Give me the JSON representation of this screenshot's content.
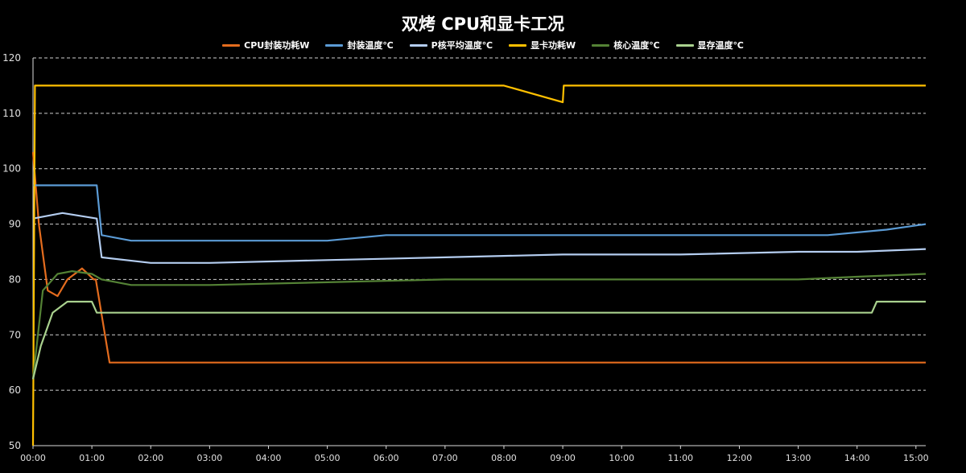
{
  "chart_data": {
    "type": "line",
    "title": "双烤 CPU和显卡工况",
    "xlabel": "",
    "ylabel": "",
    "ylim": [
      50,
      120
    ],
    "yticks": [
      50,
      60,
      70,
      80,
      90,
      100,
      110,
      120
    ],
    "xlim": [
      "00:00",
      "15:10"
    ],
    "xticks": [
      "00:00",
      "01:00",
      "02:00",
      "03:00",
      "04:00",
      "05:00",
      "06:00",
      "07:00",
      "08:00",
      "09:00",
      "10:00",
      "11:00",
      "12:00",
      "13:00",
      "14:00",
      "15:00"
    ],
    "grid": "horizontal-dashed",
    "legend_position": "top",
    "series": [
      {
        "name": "CPU封装功耗W",
        "color": "#e46c1e",
        "points": [
          [
            "00:00",
            103
          ],
          [
            "00:06",
            90
          ],
          [
            "00:15",
            78
          ],
          [
            "00:25",
            77
          ],
          [
            "00:35",
            80
          ],
          [
            "00:50",
            82
          ],
          [
            "01:02",
            80
          ],
          [
            "01:04",
            80
          ],
          [
            "01:18",
            65
          ],
          [
            "02:00",
            65
          ],
          [
            "05:00",
            65
          ],
          [
            "08:00",
            65
          ],
          [
            "11:00",
            65
          ],
          [
            "15:10",
            65
          ]
        ]
      },
      {
        "name": "封装温度℃",
        "color": "#5b9bd5",
        "points": [
          [
            "00:00",
            97
          ],
          [
            "01:05",
            97
          ],
          [
            "01:10",
            88
          ],
          [
            "01:40",
            87
          ],
          [
            "03:00",
            87
          ],
          [
            "05:00",
            87
          ],
          [
            "06:00",
            88
          ],
          [
            "07:00",
            88
          ],
          [
            "09:00",
            88
          ],
          [
            "12:00",
            88
          ],
          [
            "13:30",
            88
          ],
          [
            "14:30",
            89
          ],
          [
            "15:10",
            90
          ]
        ]
      },
      {
        "name": "P核平均温度℃",
        "color": "#b4cdf0",
        "points": [
          [
            "00:00",
            91
          ],
          [
            "00:30",
            92
          ],
          [
            "01:05",
            91
          ],
          [
            "01:10",
            84
          ],
          [
            "02:00",
            83
          ],
          [
            "03:00",
            83
          ],
          [
            "05:00",
            83.5
          ],
          [
            "07:00",
            84
          ],
          [
            "09:00",
            84.5
          ],
          [
            "11:00",
            84.5
          ],
          [
            "13:00",
            85
          ],
          [
            "14:00",
            85
          ],
          [
            "15:10",
            85.5
          ]
        ]
      },
      {
        "name": "显卡功耗W",
        "color": "#ffc000",
        "points": [
          [
            "00:00",
            50
          ],
          [
            "00:02",
            115
          ],
          [
            "02:00",
            115
          ],
          [
            "05:00",
            115
          ],
          [
            "08:00",
            115
          ],
          [
            "09:00",
            112
          ],
          [
            "09:01",
            115
          ],
          [
            "12:00",
            115
          ],
          [
            "15:10",
            115
          ]
        ]
      },
      {
        "name": "核心温度℃",
        "color": "#548235",
        "points": [
          [
            "00:00",
            62
          ],
          [
            "00:10",
            78
          ],
          [
            "00:25",
            81
          ],
          [
            "00:40",
            81.5
          ],
          [
            "01:00",
            81
          ],
          [
            "01:10",
            80
          ],
          [
            "01:40",
            79
          ],
          [
            "03:00",
            79
          ],
          [
            "05:00",
            79.5
          ],
          [
            "07:00",
            80
          ],
          [
            "10:00",
            80
          ],
          [
            "13:00",
            80
          ],
          [
            "14:00",
            80.5
          ],
          [
            "15:10",
            81
          ]
        ]
      },
      {
        "name": "显存温度℃",
        "color": "#a9d18e",
        "points": [
          [
            "00:00",
            62
          ],
          [
            "00:08",
            68
          ],
          [
            "00:20",
            74
          ],
          [
            "00:35",
            76
          ],
          [
            "01:00",
            76
          ],
          [
            "01:05",
            74
          ],
          [
            "02:00",
            74
          ],
          [
            "05:00",
            74
          ],
          [
            "08:00",
            74
          ],
          [
            "11:00",
            74
          ],
          [
            "14:15",
            74
          ],
          [
            "14:20",
            76
          ],
          [
            "15:10",
            76
          ]
        ]
      }
    ]
  }
}
